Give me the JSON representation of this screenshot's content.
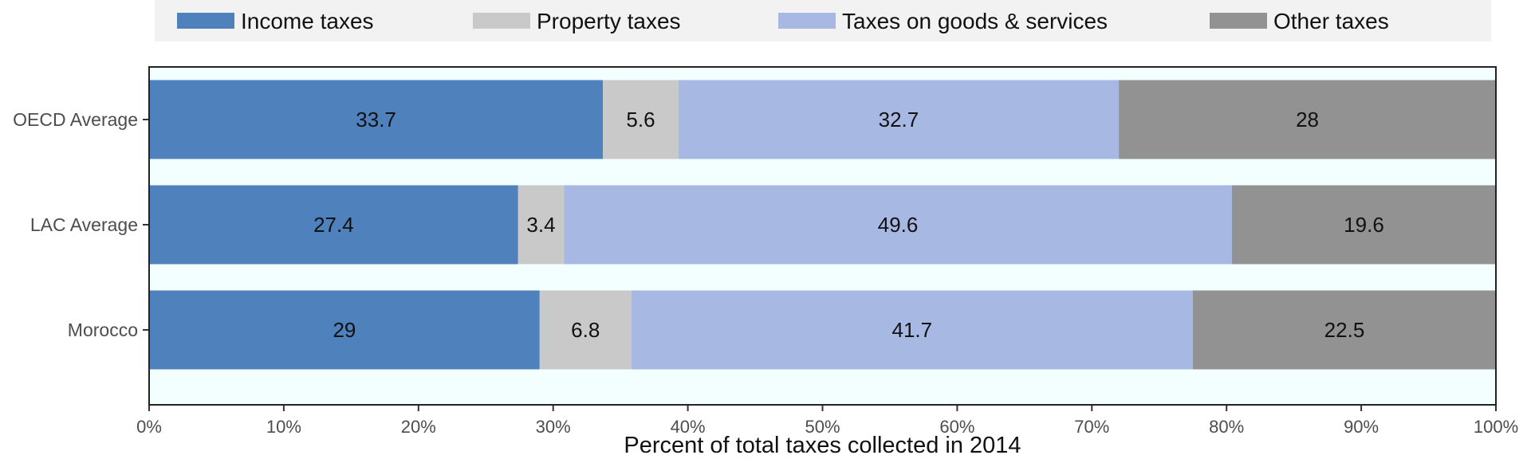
{
  "chart_data": {
    "type": "bar",
    "orientation": "horizontal",
    "stacked": true,
    "categories": [
      "OECD Average",
      "LAC Average",
      "Morocco"
    ],
    "series": [
      {
        "name": "Income taxes",
        "color": "#4f81bd",
        "values": [
          33.7,
          27.4,
          29
        ]
      },
      {
        "name": "Property taxes",
        "color": "#c9c9c9",
        "values": [
          5.6,
          3.4,
          6.8
        ]
      },
      {
        "name": "Taxes on goods & services",
        "color": "#a7b8e3",
        "values": [
          32.7,
          49.6,
          41.7
        ]
      },
      {
        "name": "Other taxes",
        "color": "#929292",
        "values": [
          28,
          19.6,
          22.5
        ]
      }
    ],
    "value_labels": [
      [
        "33.7",
        "5.6",
        "32.7",
        "28"
      ],
      [
        "27.4",
        "3.4",
        "49.6",
        "19.6"
      ],
      [
        "29",
        "6.8",
        "41.7",
        "22.5"
      ]
    ],
    "xlabel": "Percent of total taxes collected in 2014",
    "ylabel": "",
    "xlim": [
      0,
      100
    ],
    "xticks": [
      0,
      10,
      20,
      30,
      40,
      50,
      60,
      70,
      80,
      90,
      100
    ],
    "xtick_labels": [
      "0%",
      "10%",
      "20%",
      "30%",
      "40%",
      "50%",
      "60%",
      "70%",
      "80%",
      "90%",
      "100%"
    ],
    "legend_position": "top",
    "grid": false,
    "panel_background": "#f3fffe",
    "legend_background": "#f2f2f2"
  }
}
